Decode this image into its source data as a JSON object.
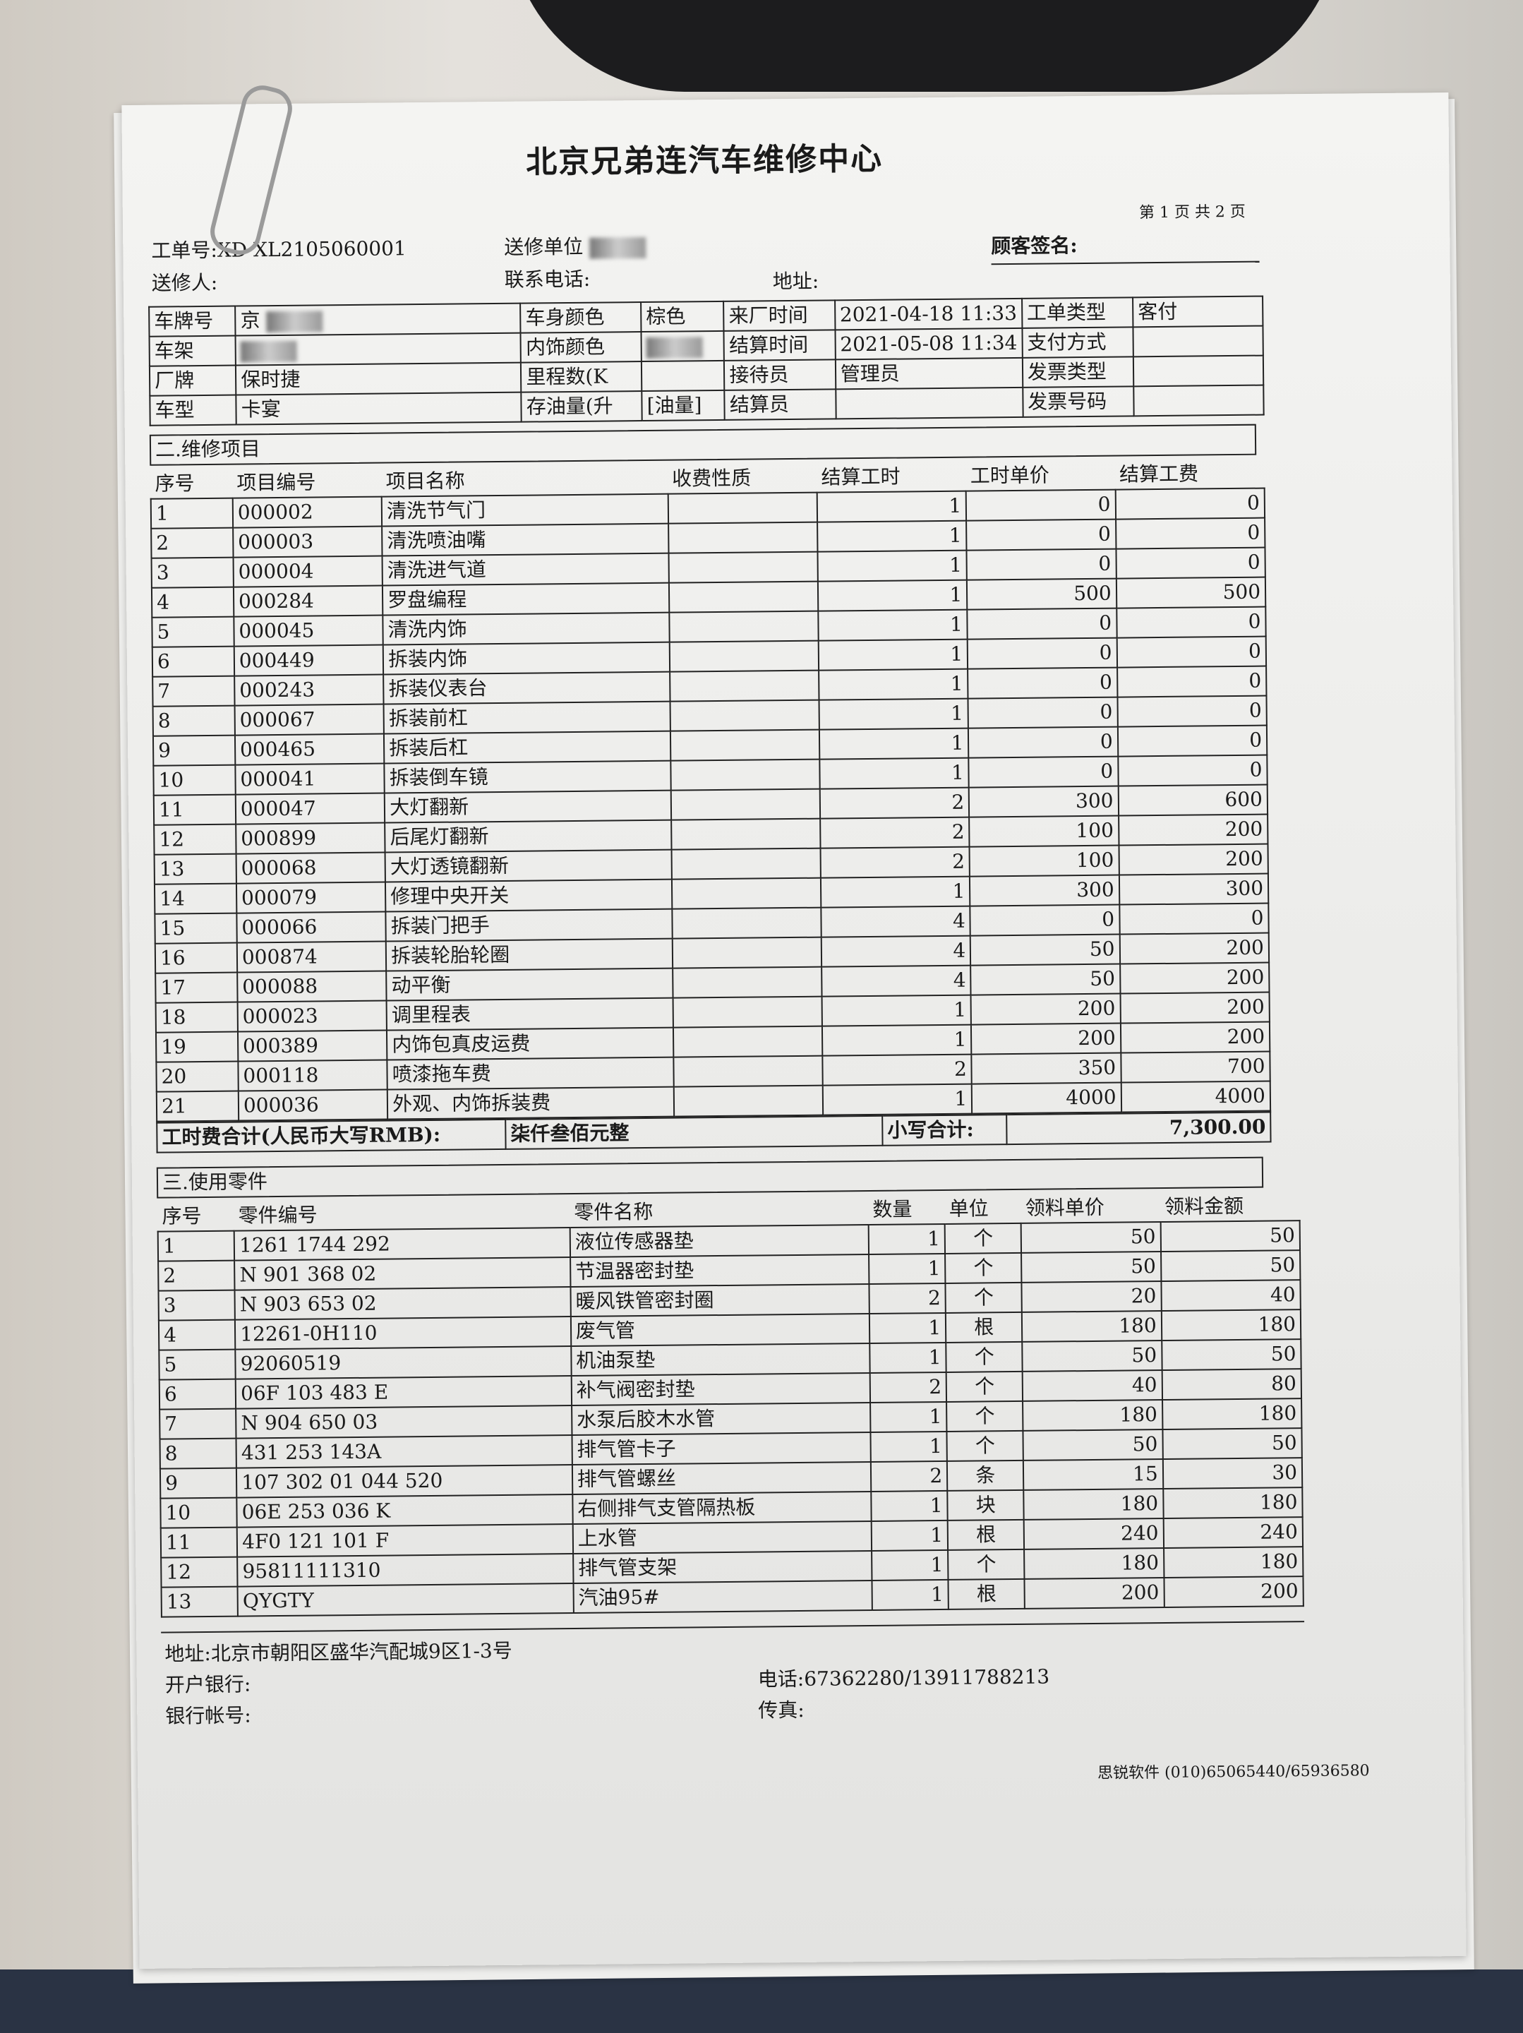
{
  "title": "北京兄弟连汽车维修中心",
  "page_info": "第 1 页 共 2 页",
  "header": {
    "order_no_label": "工单号:",
    "order_no_value": "XD XL2105060001",
    "sender_unit_label": "送修单位",
    "customer_sign_label": "顾客签名:",
    "sender_label": "送修人:",
    "phone_label": "联系电话:",
    "address_label": "地址:"
  },
  "info": {
    "plate_label": "车牌号",
    "plate_value": "京",
    "vin_label": "车架",
    "brand_label": "厂牌",
    "brand_value": "保时捷",
    "model_label": "车型",
    "model_value": "卡宴",
    "body_color_label": "车身颜色",
    "body_color_value": "棕色",
    "interior_color_label": "内饰颜色",
    "mileage_label": "里程数(K",
    "fuel_label": "存油量(升",
    "fuel_unit": "[油量]",
    "arrival_label": "来厂时间",
    "arrival_value": "2021-04-18 11:33",
    "settle_label": "结算时间",
    "settle_value": "2021-05-08 11:34",
    "receptionist_label": "接待员",
    "receptionist_value": "管理员",
    "settler_label": "结算员",
    "order_type_label": "工单类型",
    "order_type_value": "客付",
    "payment_label": "支付方式",
    "invoice_type_label": "发票类型",
    "invoice_no_label": "发票号码"
  },
  "repair": {
    "section_title": "二.维修项目",
    "columns": [
      "序号",
      "项目编号",
      "项目名称",
      "收费性质",
      "结算工时",
      "工时单价",
      "结算工费"
    ],
    "rows": [
      [
        "1",
        "000002",
        "清洗节气门",
        "",
        "1",
        "0",
        "0"
      ],
      [
        "2",
        "000003",
        "清洗喷油嘴",
        "",
        "1",
        "0",
        "0"
      ],
      [
        "3",
        "000004",
        "清洗进气道",
        "",
        "1",
        "0",
        "0"
      ],
      [
        "4",
        "000284",
        "罗盘编程",
        "",
        "1",
        "500",
        "500"
      ],
      [
        "5",
        "000045",
        "清洗内饰",
        "",
        "1",
        "0",
        "0"
      ],
      [
        "6",
        "000449",
        "拆装内饰",
        "",
        "1",
        "0",
        "0"
      ],
      [
        "7",
        "000243",
        "拆装仪表台",
        "",
        "1",
        "0",
        "0"
      ],
      [
        "8",
        "000067",
        "拆装前杠",
        "",
        "1",
        "0",
        "0"
      ],
      [
        "9",
        "000465",
        "拆装后杠",
        "",
        "1",
        "0",
        "0"
      ],
      [
        "10",
        "000041",
        "拆装倒车镜",
        "",
        "1",
        "0",
        "0"
      ],
      [
        "11",
        "000047",
        "大灯翻新",
        "",
        "2",
        "300",
        "600"
      ],
      [
        "12",
        "000899",
        "后尾灯翻新",
        "",
        "2",
        "100",
        "200"
      ],
      [
        "13",
        "000068",
        "大灯透镜翻新",
        "",
        "2",
        "100",
        "200"
      ],
      [
        "14",
        "000079",
        "修理中央开关",
        "",
        "1",
        "300",
        "300"
      ],
      [
        "15",
        "000066",
        "拆装门把手",
        "",
        "4",
        "0",
        "0"
      ],
      [
        "16",
        "000874",
        "拆装轮胎轮圈",
        "",
        "4",
        "50",
        "200"
      ],
      [
        "17",
        "000088",
        "动平衡",
        "",
        "4",
        "50",
        "200"
      ],
      [
        "18",
        "000023",
        "调里程表",
        "",
        "1",
        "200",
        "200"
      ],
      [
        "19",
        "000389",
        "内饰包真皮运费",
        "",
        "1",
        "200",
        "200"
      ],
      [
        "20",
        "000118",
        "喷漆拖车费",
        "",
        "2",
        "350",
        "700"
      ],
      [
        "21",
        "000036",
        "外观、内饰拆装费",
        "",
        "1",
        "4000",
        "4000"
      ]
    ],
    "total_label": "工时费合计(人民币大写RMB):",
    "total_words": "柒仟叁佰元整",
    "subtotal_label": "小写合计:",
    "subtotal_value": "7,300.00"
  },
  "parts": {
    "section_title": "三.使用零件",
    "columns": [
      "序号",
      "零件编号",
      "零件名称",
      "数量",
      "单位",
      "领料单价",
      "领料金额"
    ],
    "rows": [
      [
        "1",
        "1261 1744 292",
        "液位传感器垫",
        "1",
        "个",
        "50",
        "50"
      ],
      [
        "2",
        "N 901 368 02",
        "节温器密封垫",
        "1",
        "个",
        "50",
        "50"
      ],
      [
        "3",
        "N 903 653 02",
        "暖风铁管密封圈",
        "2",
        "个",
        "20",
        "40"
      ],
      [
        "4",
        "12261-0H110",
        "废气管",
        "1",
        "根",
        "180",
        "180"
      ],
      [
        "5",
        "92060519",
        "机油泵垫",
        "1",
        "个",
        "50",
        "50"
      ],
      [
        "6",
        "06F 103 483 E",
        "补气阀密封垫",
        "2",
        "个",
        "40",
        "80"
      ],
      [
        "7",
        "N 904 650 03",
        "水泵后胶木水管",
        "1",
        "个",
        "180",
        "180"
      ],
      [
        "8",
        "431 253 143A",
        "排气管卡子",
        "1",
        "个",
        "50",
        "50"
      ],
      [
        "9",
        "107 302 01 044 520",
        "排气管螺丝",
        "2",
        "条",
        "15",
        "30"
      ],
      [
        "10",
        "06E 253 036 K",
        "右侧排气支管隔热板",
        "1",
        "块",
        "180",
        "180"
      ],
      [
        "11",
        "4F0 121 101 F",
        "上水管",
        "1",
        "根",
        "240",
        "240"
      ],
      [
        "12",
        "95811111310",
        "排气管支架",
        "1",
        "个",
        "180",
        "180"
      ],
      [
        "13",
        "QYGTY",
        "汽油95#",
        "1",
        "根",
        "200",
        "200"
      ]
    ]
  },
  "footer": {
    "address": "地址:北京市朝阳区盛华汽配城9区1-3号",
    "bank_label": "开户银行:",
    "account_label": "银行帐号:",
    "phone": "电话:67362280/13911788213",
    "fax_label": "传真:",
    "software": "思锐软件 (010)65065440/65936580"
  }
}
